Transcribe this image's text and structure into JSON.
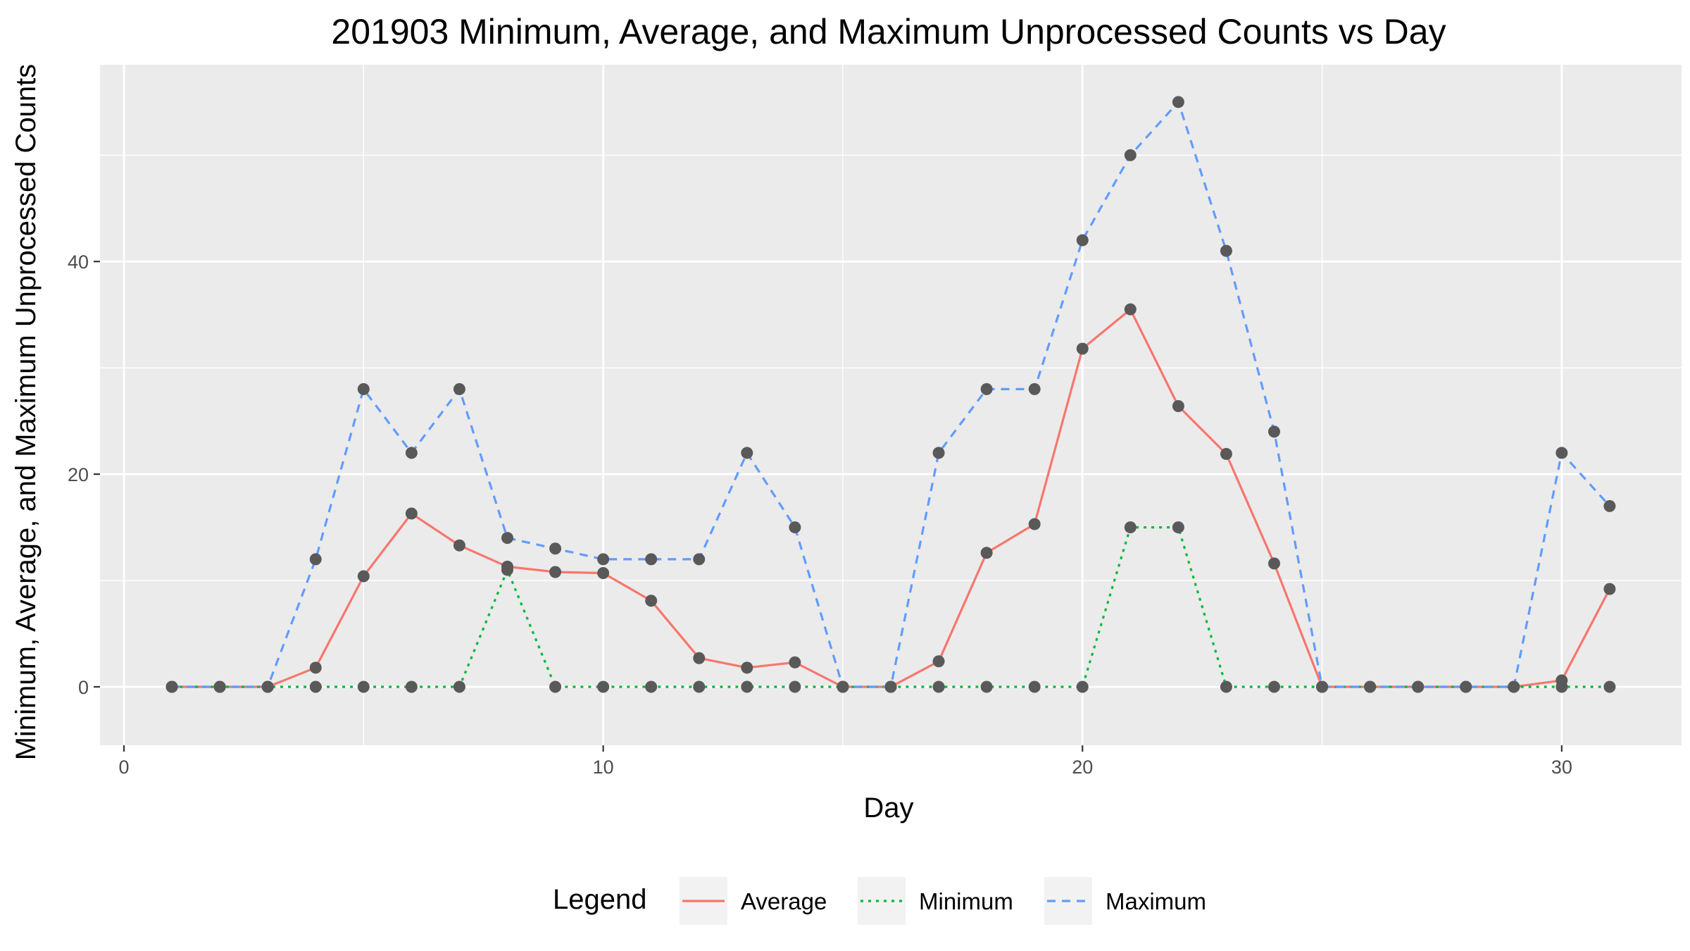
{
  "chart_data": {
    "type": "line",
    "title": "201903 Minimum, Average, and Maximum Unprocessed Counts vs Day",
    "xlabel": "Day",
    "ylabel": "Minimum, Average, and Maximum Unprocessed Counts",
    "xlim": [
      -0.5,
      32.5
    ],
    "ylim": [
      -5.5,
      58.5
    ],
    "x_ticks": [
      0,
      10,
      20,
      30
    ],
    "y_ticks": [
      0,
      20,
      40
    ],
    "grid": true,
    "legend": {
      "title": "Legend",
      "position": "bottom"
    },
    "x": [
      1,
      2,
      3,
      4,
      5,
      6,
      7,
      8,
      9,
      10,
      11,
      12,
      13,
      14,
      15,
      16,
      17,
      18,
      19,
      20,
      21,
      22,
      23,
      24,
      25,
      26,
      27,
      28,
      29,
      30,
      31
    ],
    "series": [
      {
        "name": "Average",
        "color": "#F8766D",
        "linetype": "solid",
        "values": [
          0,
          0,
          0,
          1.8,
          10.4,
          16.3,
          13.3,
          11.3,
          10.8,
          10.7,
          8.1,
          2.7,
          1.8,
          2.3,
          0,
          0,
          2.4,
          12.6,
          15.3,
          31.8,
          35.5,
          26.4,
          21.9,
          11.6,
          0,
          0,
          0,
          0,
          0,
          0.6,
          9.2
        ]
      },
      {
        "name": "Minimum",
        "color": "#00BA38",
        "linetype": "dotted",
        "values": [
          0,
          0,
          0,
          0,
          0,
          0,
          0,
          11,
          0,
          0,
          0,
          0,
          0,
          0,
          0,
          0,
          0,
          0,
          0,
          0,
          15,
          15,
          0,
          0,
          0,
          0,
          0,
          0,
          0,
          0,
          0
        ]
      },
      {
        "name": "Maximum",
        "color": "#619CFF",
        "linetype": "dashed",
        "values": [
          0,
          0,
          0,
          12,
          28,
          22,
          28,
          14,
          13,
          12,
          12,
          12,
          22,
          15,
          0,
          0,
          22,
          28,
          28,
          42,
          50,
          55,
          41,
          24,
          0,
          0,
          0,
          0,
          0,
          22,
          17
        ]
      }
    ],
    "point_color": "#595959",
    "panel_bg": "#EBEBEB"
  }
}
